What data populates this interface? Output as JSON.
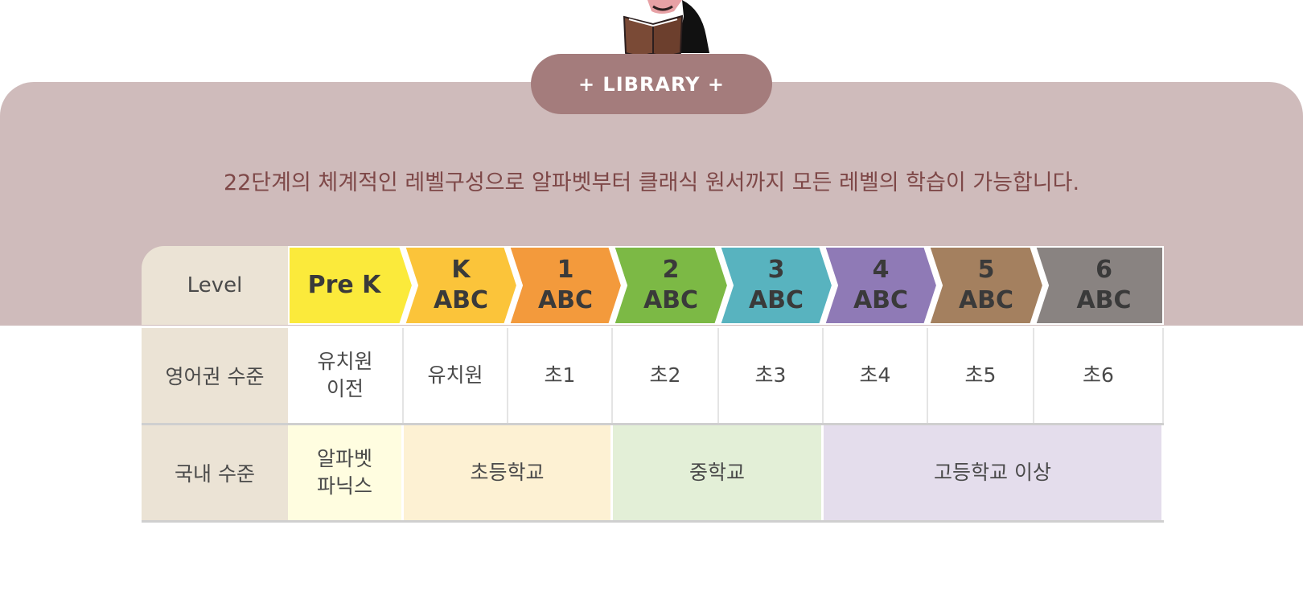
{
  "hero": {
    "badge_label": "+ LIBRARY +",
    "subtitle": "22단계의 체계적인 레벨구성으로 알파벳부터 클래식 원서까지 모든 레벨의 학습이 가능합니다."
  },
  "table": {
    "header_label": "Level",
    "levels": [
      {
        "line1": "Pre K",
        "line2": "",
        "color": "#fbea3b"
      },
      {
        "line1": "K",
        "line2": "ABC",
        "color": "#fbc43a"
      },
      {
        "line1": "1",
        "line2": "ABC",
        "color": "#f39a3c"
      },
      {
        "line1": "2",
        "line2": "ABC",
        "color": "#7cb945"
      },
      {
        "line1": "3",
        "line2": "ABC",
        "color": "#58b3bf"
      },
      {
        "line1": "4",
        "line2": "ABC",
        "color": "#8f7ab6"
      },
      {
        "line1": "5",
        "line2": "ABC",
        "color": "#a4805f"
      },
      {
        "line1": "6",
        "line2": "ABC",
        "color": "#898381"
      }
    ],
    "english_row": {
      "label": "영어권 수준",
      "cells": [
        "유치원\n이전",
        "유치원",
        "초1",
        "초2",
        "초3",
        "초4",
        "초5",
        "초6"
      ]
    },
    "domestic_row": {
      "label": "국내 수준",
      "groups": [
        {
          "label": "알파벳\n파닉스",
          "span": 1,
          "color": "#fffde0"
        },
        {
          "label": "초등학교",
          "span": 2,
          "color": "#fdf1d3"
        },
        {
          "label": "중학교",
          "span": 2,
          "color": "#e3efd7"
        },
        {
          "label": "고등학교 이상",
          "span": 3,
          "color": "#e4ddec"
        }
      ]
    }
  }
}
